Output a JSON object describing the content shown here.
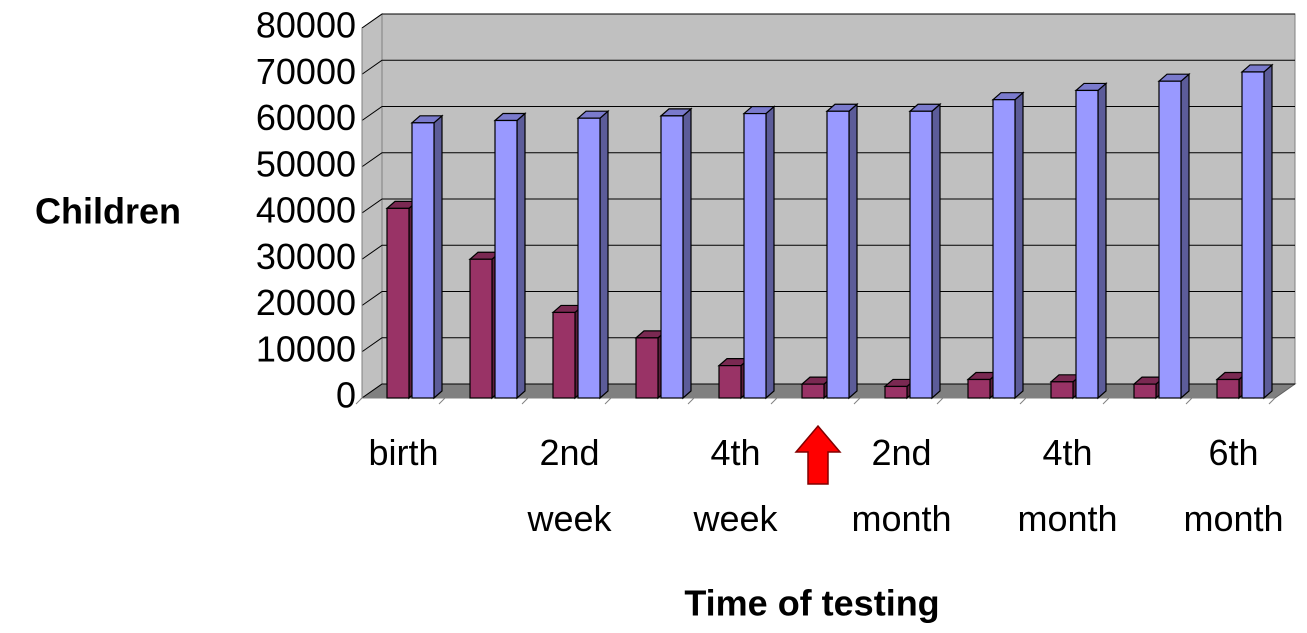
{
  "chart_data": {
    "type": "bar3d",
    "ylabel": "Children",
    "xlabel": "Time of testing",
    "categories": [
      "birth",
      null,
      "2nd week",
      null,
      "4th week",
      null,
      "2nd month",
      null,
      "4th month",
      null,
      "6th month"
    ],
    "series": [
      {
        "color": "#993366",
        "values": [
          41000,
          30000,
          18500,
          13000,
          7000,
          3000,
          2500,
          4000,
          3500,
          3000,
          4000
        ]
      },
      {
        "color": "#9999ff",
        "values": [
          59500,
          60000,
          60500,
          61000,
          61500,
          62000,
          62000,
          64500,
          66500,
          68500,
          70500
        ]
      }
    ],
    "ylim": [
      0,
      80000
    ],
    "yticks": [
      0,
      10000,
      20000,
      30000,
      40000,
      50000,
      60000,
      70000,
      80000
    ],
    "grid": true
  }
}
